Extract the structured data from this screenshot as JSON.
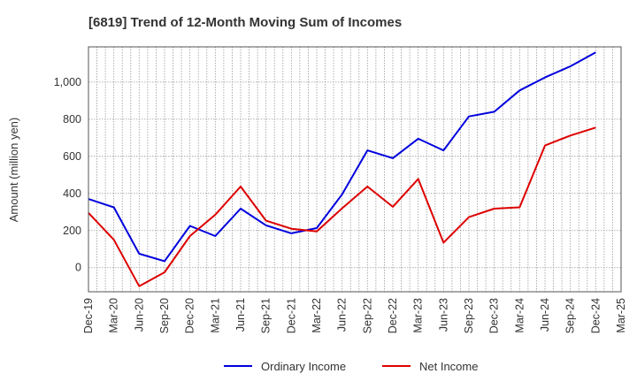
{
  "chart_data": {
    "type": "line",
    "title": "[6819]  Trend of 12-Month Moving Sum of Incomes",
    "xlabel": "",
    "ylabel": "Amount (million yen)",
    "ylim": [
      -130,
      1190
    ],
    "yticks": [
      0,
      200,
      400,
      600,
      800,
      1000
    ],
    "ytick_labels": [
      "0",
      "200",
      "400",
      "600",
      "800",
      "1,000"
    ],
    "categories": [
      "Dec-19",
      "Mar-20",
      "Jun-20",
      "Sep-20",
      "Dec-20",
      "Mar-21",
      "Jun-21",
      "Sep-21",
      "Dec-21",
      "Mar-22",
      "Jun-22",
      "Sep-22",
      "Dec-22",
      "Mar-23",
      "Jun-23",
      "Sep-23",
      "Dec-23",
      "Mar-24",
      "Jun-24",
      "Sep-24",
      "Dec-24",
      "Mar-25"
    ],
    "grid": true,
    "legend_position": "bottom",
    "series": [
      {
        "name": "Ordinary Income",
        "color": "#0000dd",
        "values": [
          370,
          325,
          75,
          35,
          225,
          170,
          318,
          228,
          185,
          213,
          395,
          632,
          590,
          695,
          632,
          815,
          840,
          955,
          1025,
          1085,
          1160,
          null
        ]
      },
      {
        "name": "Net Income",
        "color": "#dd0000",
        "values": [
          295,
          150,
          -100,
          -25,
          170,
          285,
          437,
          253,
          210,
          195,
          320,
          437,
          328,
          478,
          135,
          272,
          318,
          325,
          658,
          712,
          755,
          null
        ]
      }
    ]
  }
}
